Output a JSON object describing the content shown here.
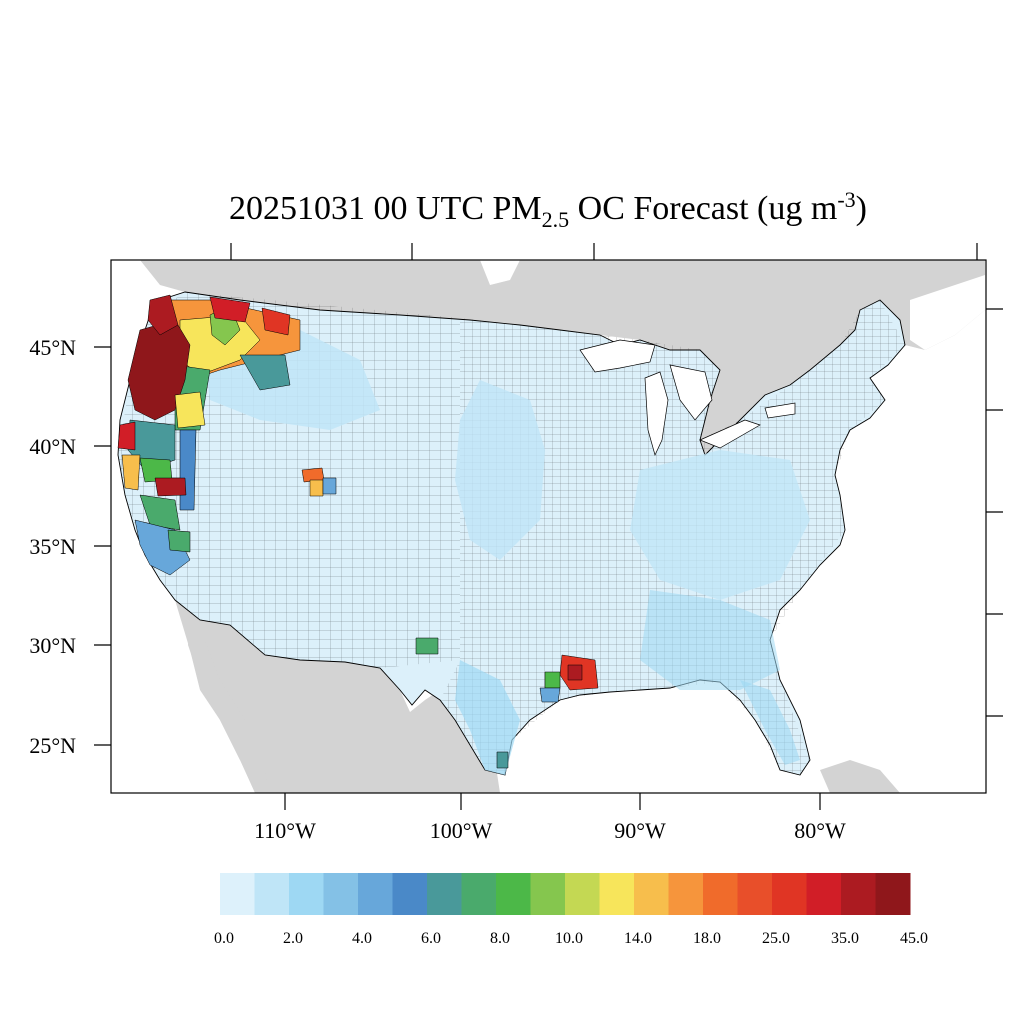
{
  "title": {
    "prefix": "20251031 00 UTC PM",
    "subscript": "2.5",
    "middle": " OC Forecast (ug m",
    "superscript": "-3",
    "suffix": ")"
  },
  "map": {
    "lat_labels": [
      "45°N",
      "40°N",
      "35°N",
      "30°N",
      "25°N"
    ],
    "lon_labels": [
      "110°W",
      "100°W",
      "90°W",
      "80°W"
    ],
    "colors": {
      "background_land": "#d3d3d3",
      "water": "#ffffff",
      "conus_base": "#dcf0fa",
      "county_line": "#000000"
    }
  },
  "colorbar": {
    "colors": [
      "#ddf1fb",
      "#bfe5f7",
      "#9ed8f3",
      "#84c1e6",
      "#67a7da",
      "#4a89c8",
      "#49999a",
      "#4aaa6c",
      "#4cb848",
      "#85c64e",
      "#c4d853",
      "#f7e55b",
      "#f7be4c",
      "#f6953c",
      "#f06b2b",
      "#e84f2a",
      "#e03524",
      "#d11e27",
      "#ac1b21",
      "#8f171b"
    ],
    "labels": [
      "0.0",
      "2.0",
      "4.0",
      "6.0",
      "8.0",
      "10.0",
      "14.0",
      "18.0",
      "25.0",
      "35.0",
      "45.0"
    ]
  }
}
